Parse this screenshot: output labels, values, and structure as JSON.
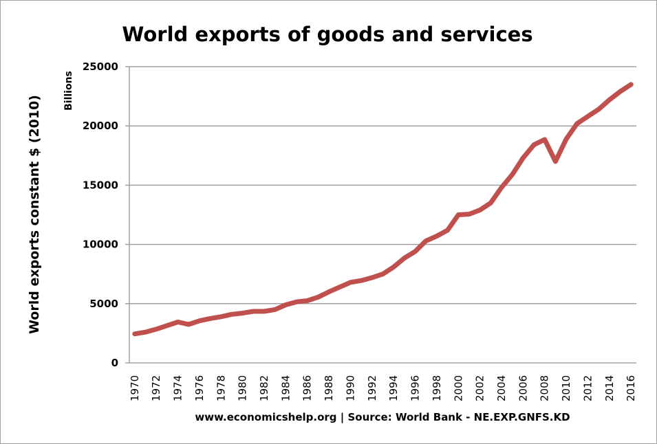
{
  "chart_data": {
    "type": "line",
    "title": "World exports of goods and services",
    "ylabel": "World exports constant $ (2010)",
    "y_unit_label": "Billions",
    "xlabel": "",
    "footer": "www.economicshelp.org | Source: World Bank - NE.EXP.GNFS.KD",
    "ylim": [
      0,
      25000
    ],
    "y_ticks": [
      0,
      5000,
      10000,
      15000,
      20000,
      25000
    ],
    "grid": true,
    "line_color": "#c0504d",
    "x": [
      1970,
      1971,
      1972,
      1973,
      1974,
      1975,
      1976,
      1977,
      1978,
      1979,
      1980,
      1981,
      1982,
      1983,
      1984,
      1985,
      1986,
      1987,
      1988,
      1989,
      1990,
      1991,
      1992,
      1993,
      1994,
      1995,
      1996,
      1997,
      1998,
      1999,
      2000,
      2001,
      2002,
      2003,
      2004,
      2005,
      2006,
      2007,
      2008,
      2009,
      2010,
      2011,
      2012,
      2013,
      2014,
      2015,
      2016
    ],
    "x_tick_labels": [
      "1970",
      "1972",
      "1974",
      "1976",
      "1978",
      "1980",
      "1982",
      "1984",
      "1986",
      "1988",
      "1990",
      "1992",
      "1994",
      "1996",
      "1998",
      "2000",
      "2002",
      "2004",
      "2006",
      "2008",
      "2010",
      "2012",
      "2014",
      "2016"
    ],
    "series": [
      {
        "values": [
          2450,
          2600,
          2850,
          3150,
          3450,
          3250,
          3550,
          3750,
          3900,
          4100,
          4200,
          4350,
          4350,
          4500,
          4900,
          5150,
          5250,
          5550,
          6000,
          6400,
          6800,
          6950,
          7200,
          7500,
          8100,
          8850,
          9400,
          10300,
          10700,
          11200,
          12500,
          12550,
          12900,
          13500,
          14800,
          15900,
          17300,
          18400,
          18850,
          17000,
          18900,
          20200,
          20800,
          21400,
          22200,
          22900,
          23500
        ]
      }
    ]
  }
}
